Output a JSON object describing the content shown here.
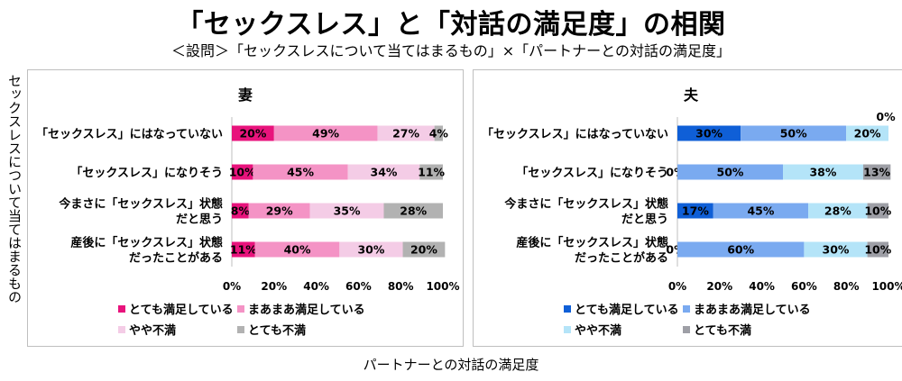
{
  "title": "「セックスレス」と「対話の満足度」の相関",
  "subtitle": "＜設問＞「セックスレスについて当てはまるもの」×「パートナーとの対話の満足度」",
  "ylabel": "セックスレスについて当てはまるもの",
  "xlabel": "パートナーとの対話の満足度",
  "chart_data": [
    {
      "type": "bar",
      "orientation": "horizontal",
      "stacked": "percent",
      "title": "妻",
      "categories": [
        [
          "「セックスレス」にはなっていない"
        ],
        [
          "「セックスレス」になりそう"
        ],
        [
          "今まさに「セックスレス」状態",
          "だと思う"
        ],
        [
          "産後に「セックスレス」状態",
          "だったことがある"
        ]
      ],
      "series": [
        {
          "name": "とても満足している",
          "color": "#e8137c",
          "values": [
            20,
            10,
            8,
            11
          ]
        },
        {
          "name": "まあまあ満足している",
          "color": "#f493c5",
          "values": [
            49,
            45,
            29,
            40
          ]
        },
        {
          "name": "やや不満",
          "color": "#f4cce6",
          "values": [
            27,
            34,
            35,
            30
          ]
        },
        {
          "name": "とても不満",
          "color": "#b2b2b2",
          "values": [
            4,
            11,
            28,
            20
          ]
        }
      ],
      "xticks": [
        "0%",
        "20%",
        "40%",
        "60%",
        "80%",
        "100%"
      ],
      "xlim": [
        0,
        100
      ],
      "legend": "bottom"
    },
    {
      "type": "bar",
      "orientation": "horizontal",
      "stacked": "percent",
      "title": "夫",
      "categories": [
        [
          "「セックスレス」にはなっていない"
        ],
        [
          "「セックスレス」になりそう"
        ],
        [
          "今まさに「セックスレス」状態",
          "だと思う"
        ],
        [
          "産後に「セックスレス」状態",
          "だったことがある"
        ]
      ],
      "series": [
        {
          "name": "とても満足している",
          "color": "#0f5fd7",
          "values": [
            30,
            0,
            17,
            0
          ]
        },
        {
          "name": "まあまあ満足している",
          "color": "#7aaaf0",
          "values": [
            50,
            50,
            45,
            60
          ]
        },
        {
          "name": "やや不満",
          "color": "#b4e4f8",
          "values": [
            20,
            38,
            28,
            30
          ]
        },
        {
          "name": "とても不満",
          "color": "#9e9fa6",
          "values": [
            0,
            13,
            10,
            10
          ]
        }
      ],
      "xticks": [
        "0%",
        "20%",
        "40%",
        "60%",
        "80%",
        "100%"
      ],
      "xlim": [
        0,
        100
      ],
      "legend": "bottom"
    }
  ]
}
